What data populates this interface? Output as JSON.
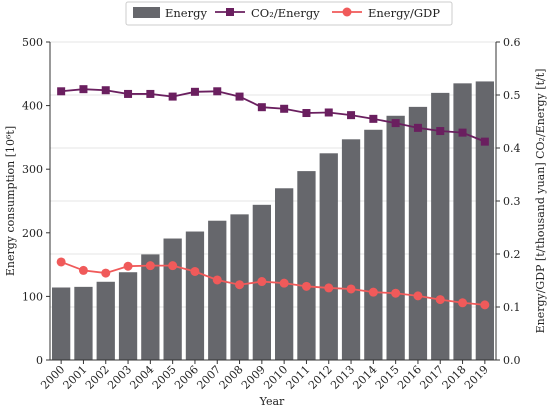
{
  "chart_data": {
    "type": "bar",
    "categories": [
      "2000",
      "2001",
      "2002",
      "2003",
      "2004",
      "2005",
      "2006",
      "2007",
      "2008",
      "2009",
      "2010",
      "2011",
      "2012",
      "2013",
      "2014",
      "2015",
      "2016",
      "2017",
      "2018",
      "2019"
    ],
    "series": [
      {
        "name": "Energy",
        "type": "bar",
        "axis": "left",
        "color": "#66676c",
        "values": [
          114,
          115,
          123,
          138,
          166,
          191,
          202,
          219,
          229,
          244,
          270,
          297,
          325,
          347,
          362,
          384,
          398,
          420,
          435,
          438
        ]
      },
      {
        "name": "CO2/Energy",
        "type": "line",
        "marker": "square",
        "axis": "right",
        "color": "#6a1f5f",
        "values": [
          0.507,
          0.511,
          0.509,
          0.502,
          0.502,
          0.497,
          0.506,
          0.507,
          0.497,
          0.477,
          0.474,
          0.466,
          0.467,
          0.462,
          0.455,
          0.447,
          0.438,
          0.432,
          0.429,
          0.412
        ]
      },
      {
        "name": "Energy/GDP",
        "type": "line",
        "marker": "circle",
        "axis": "right",
        "color": "#f05a5a",
        "values": [
          0.185,
          0.169,
          0.164,
          0.177,
          0.178,
          0.178,
          0.167,
          0.151,
          0.142,
          0.148,
          0.145,
          0.139,
          0.136,
          0.134,
          0.128,
          0.126,
          0.121,
          0.114,
          0.108,
          0.104
        ]
      }
    ],
    "legend": {
      "position": "top-center",
      "labels": [
        "Energy",
        "CO₂/Energy",
        "Energy/GDP"
      ]
    },
    "xlabel": "Year",
    "ylabel_left": "Energy consumption [10⁶t]",
    "ylabel_right": "Energy/GDP [t/thousand yuan] CO₂/Energy [t/t]",
    "ylim_left": [
      0,
      500
    ],
    "ylim_right": [
      0,
      0.6
    ],
    "yticks_left": [
      "0",
      "100",
      "200",
      "300",
      "400",
      "500"
    ],
    "yticks_right": [
      "0.0",
      "0.1",
      "0.2",
      "0.3",
      "0.4",
      "0.5",
      "0.6"
    ],
    "grid": true
  }
}
